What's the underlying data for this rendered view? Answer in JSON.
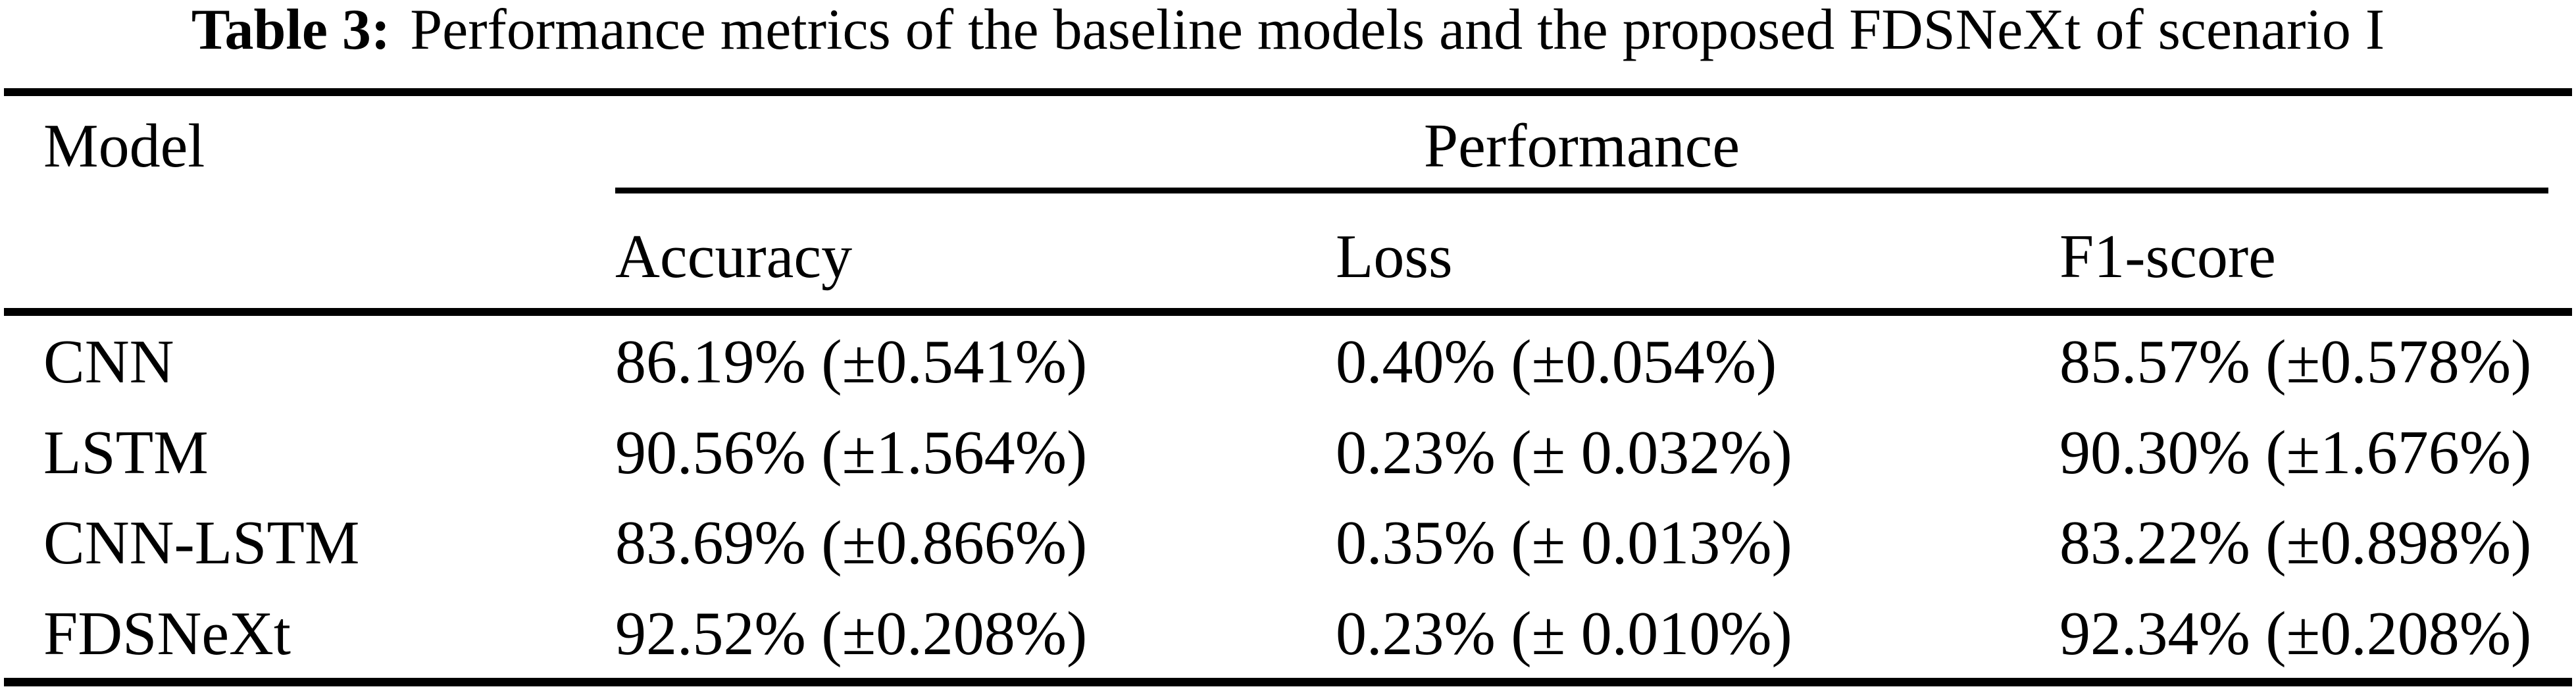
{
  "caption": {
    "label": "Table 3:",
    "text": "Performance metrics of the baseline models and the proposed FDSNeXt of scenario I"
  },
  "colors": {
    "text": "#000000",
    "background": "#ffffff"
  },
  "table": {
    "model_column_header": "Model",
    "group_header": "Performance",
    "columns": [
      "Accuracy",
      "Loss",
      "F1-score"
    ],
    "rows": [
      {
        "model": "CNN",
        "accuracy": "86.19% (±0.541%)",
        "loss": "0.40% (±0.054%)",
        "f1": "85.57% (±0.578%)"
      },
      {
        "model": "LSTM",
        "accuracy": "90.56% (±1.564%)",
        "loss": "0.23% (± 0.032%)",
        "f1": "90.30% (±1.676%)"
      },
      {
        "model": "CNN-LSTM",
        "accuracy": "83.69% (±0.866%)",
        "loss": "0.35% (± 0.013%)",
        "f1": "83.22% (±0.898%)"
      },
      {
        "model": "FDSNeXt",
        "accuracy": "92.52% (±0.208%)",
        "loss": "0.23% (± 0.010%)",
        "f1": "92.34% (±0.208%)"
      }
    ]
  }
}
